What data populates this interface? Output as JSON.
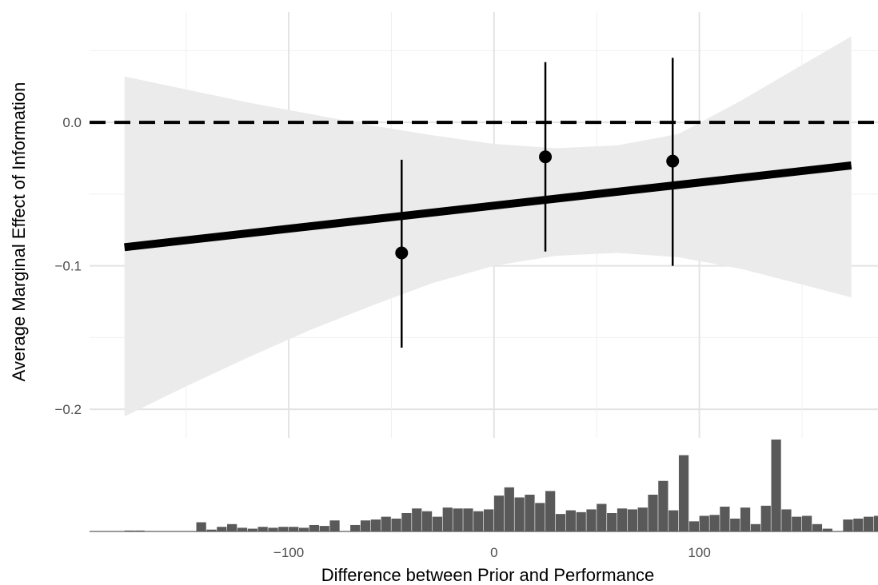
{
  "chart_data": {
    "type": "line",
    "xlabel": "Difference between Prior and Performance",
    "ylabel": "Average Marginal Effect of Information",
    "xlim": [
      -197,
      187
    ],
    "ylim": [
      -0.22,
      0.077
    ],
    "x_ticks": [
      -100,
      0,
      100
    ],
    "x_tick_labels": [
      "−100",
      "0",
      "100"
    ],
    "x_minor_ticks": [
      -150,
      -50,
      50,
      150
    ],
    "y_ticks": [
      0.0,
      -0.1,
      -0.2
    ],
    "y_tick_labels": [
      "0.0",
      "−0.1",
      "−0.2"
    ],
    "y_minor_ticks": [
      0.05,
      -0.05,
      -0.15
    ],
    "grid": true,
    "reference_line": {
      "y": 0,
      "style": "dashed"
    },
    "fit_line": {
      "x": [
        -180,
        174
      ],
      "y": [
        -0.087,
        -0.03
      ]
    },
    "confidence_band": {
      "x": [
        -180,
        -150,
        -120,
        -90,
        -60,
        -30,
        0,
        30,
        60,
        90,
        120,
        150,
        174
      ],
      "lower": [
        -0.205,
        -0.184,
        -0.164,
        -0.145,
        -0.128,
        -0.112,
        -0.1,
        -0.093,
        -0.091,
        -0.094,
        -0.102,
        -0.113,
        -0.122
      ],
      "upper": [
        0.032,
        0.023,
        0.014,
        0.006,
        -0.002,
        -0.009,
        -0.015,
        -0.018,
        -0.016,
        -0.008,
        0.015,
        0.04,
        0.06
      ]
    },
    "points": [
      {
        "x": -45,
        "y": -0.091,
        "lower": -0.157,
        "upper": -0.026
      },
      {
        "x": 25,
        "y": -0.024,
        "lower": -0.09,
        "upper": 0.042
      },
      {
        "x": 87,
        "y": -0.027,
        "lower": -0.1,
        "upper": 0.045
      }
    ],
    "histogram": {
      "bin_start": -180,
      "bin_width": 5,
      "max_count": 100,
      "counts": [
        1,
        1,
        0,
        0,
        0,
        0,
        0,
        10,
        2,
        5,
        8,
        4,
        3,
        5,
        4,
        5,
        5,
        4,
        7,
        6,
        12,
        0,
        7,
        12,
        13,
        16,
        14,
        20,
        25,
        22,
        16,
        26,
        25,
        25,
        22,
        24,
        39,
        48,
        37,
        40,
        31,
        44,
        19,
        23,
        21,
        24,
        30,
        20,
        25,
        24,
        26,
        40,
        55,
        23,
        83,
        11,
        17,
        18,
        27,
        14,
        26,
        8,
        28,
        100,
        24,
        16,
        17,
        8,
        3,
        0,
        13,
        14,
        16,
        17,
        3,
        27,
        31,
        5,
        3,
        5,
        2,
        15,
        14,
        4
      ]
    }
  }
}
